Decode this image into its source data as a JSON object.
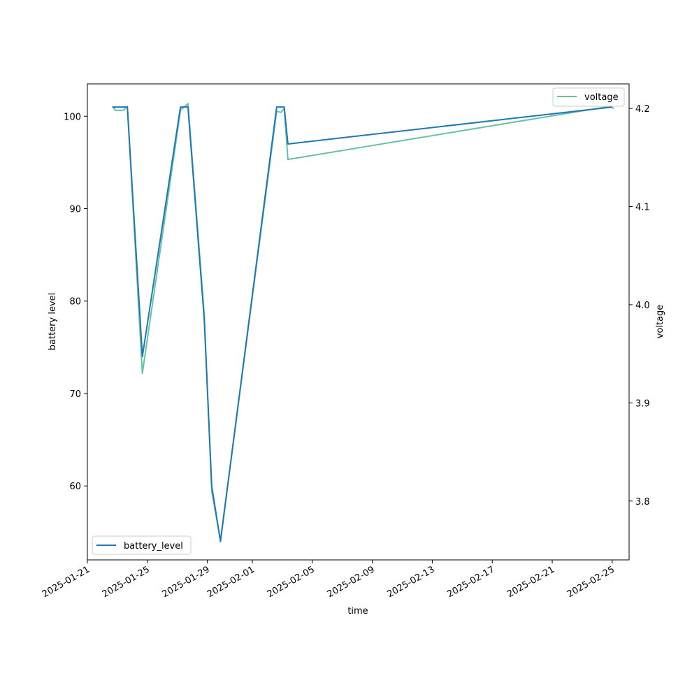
{
  "chart_data": {
    "type": "line",
    "xlabel": "time",
    "ylabel_left": "battery level",
    "ylabel_right": "voltage",
    "x_ticks": [
      "2025-01-21",
      "2025-01-25",
      "2025-01-29",
      "2025-02-01",
      "2025-02-05",
      "2025-02-09",
      "2025-02-13",
      "2025-02-17",
      "2025-02-21",
      "2025-02-25"
    ],
    "x_range": [
      "2025-01-21",
      "2025-02-26T03:00"
    ],
    "left_axis": {
      "ticks": [
        60,
        70,
        80,
        90,
        100
      ],
      "range": [
        52,
        103.5
      ]
    },
    "right_axis": {
      "ticks": [
        3.8,
        3.9,
        4.0,
        4.1,
        4.2
      ],
      "range": [
        3.74,
        4.225
      ]
    },
    "grid": false,
    "series": [
      {
        "name": "battery_level",
        "axis": "left",
        "color": "#1f77b4",
        "legend_position": "lower-left",
        "points": [
          [
            "2025-01-22T16:00",
            101
          ],
          [
            "2025-01-23T16:00",
            101
          ],
          [
            "2025-01-24T16:00",
            74
          ],
          [
            "2025-01-27T05:00",
            101
          ],
          [
            "2025-01-27T17:00",
            101
          ],
          [
            "2025-01-28T19:00",
            78
          ],
          [
            "2025-01-29T07:00",
            60
          ],
          [
            "2025-01-29T21:00",
            54
          ],
          [
            "2025-02-02T15:00",
            101
          ],
          [
            "2025-02-03T03:00",
            101
          ],
          [
            "2025-02-03T09:00",
            97
          ],
          [
            "2025-02-25T00:00",
            101
          ]
        ]
      },
      {
        "name": "voltage",
        "axis": "right",
        "color": "#66c2a5",
        "legend_position": "upper-right",
        "points": [
          [
            "2025-01-22T16:00",
            4.202
          ],
          [
            "2025-01-22T21:00",
            4.198
          ],
          [
            "2025-01-23T09:00",
            4.198
          ],
          [
            "2025-01-23T16:00",
            4.202
          ],
          [
            "2025-01-24T16:00",
            3.93
          ],
          [
            "2025-01-27T05:00",
            4.198
          ],
          [
            "2025-01-27T17:00",
            4.205
          ],
          [
            "2025-01-28T19:00",
            3.99
          ],
          [
            "2025-01-29T07:00",
            3.81
          ],
          [
            "2025-01-29T21:00",
            3.76
          ],
          [
            "2025-02-02T15:00",
            4.197
          ],
          [
            "2025-02-02T22:00",
            4.196
          ],
          [
            "2025-02-03T03:00",
            4.2
          ],
          [
            "2025-02-03T09:00",
            4.148
          ],
          [
            "2025-02-24T19:00",
            4.202
          ],
          [
            "2025-02-25T03:00",
            4.2
          ]
        ]
      }
    ]
  }
}
